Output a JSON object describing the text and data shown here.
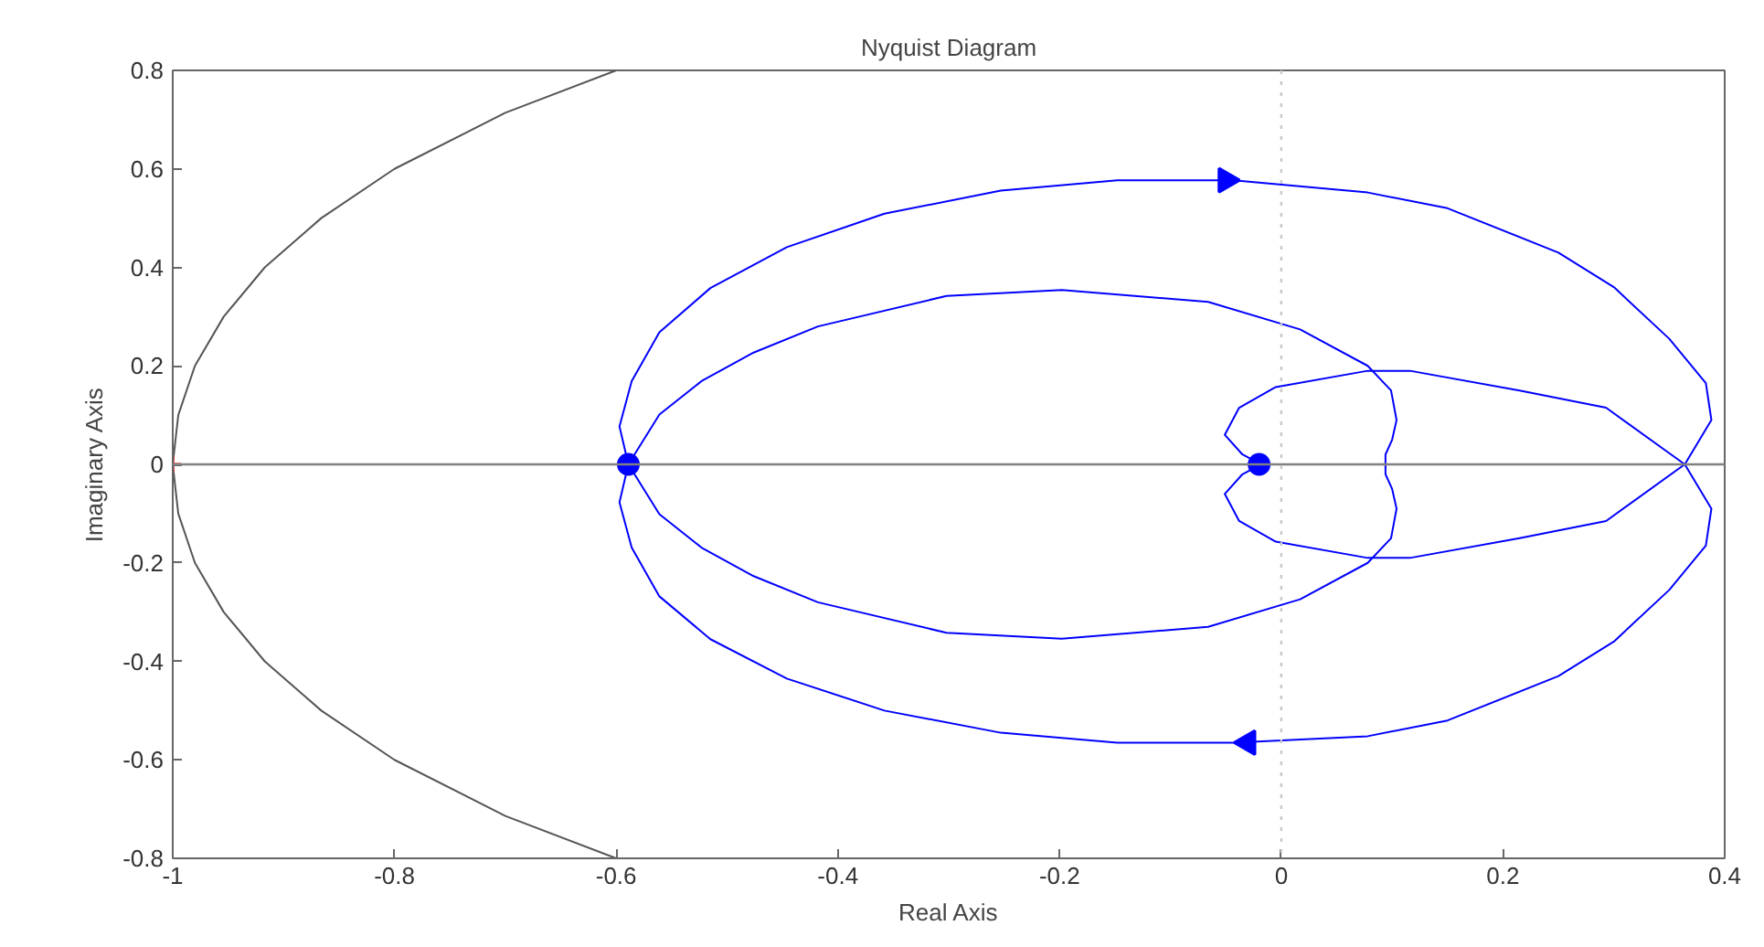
{
  "chart_data": {
    "type": "line",
    "title": "Nyquist Diagram",
    "xlabel": "Real Axis",
    "ylabel": "Imaginary Axis",
    "xlim": [
      -1,
      0.4
    ],
    "ylim": [
      -0.8,
      0.8
    ],
    "xticks": [
      -1,
      -0.8,
      -0.6,
      -0.4,
      -0.2,
      0,
      0.2,
      0.4
    ],
    "yticks": [
      -0.8,
      -0.6,
      -0.4,
      -0.2,
      0,
      0.2,
      0.4,
      0.6,
      0.8
    ],
    "grid": false,
    "line_style": "solid",
    "ref_lines": [
      {
        "axis": "y",
        "value": 0,
        "color": "#808080",
        "line_style": "solid"
      },
      {
        "axis": "x",
        "value": 0,
        "color": "#c8c8c8",
        "line_style": "dotted"
      }
    ],
    "series": [
      {
        "color": "#555555",
        "x": [
          -0.6,
          -0.7,
          -0.8,
          -0.866,
          -0.917,
          -0.954,
          -0.98,
          -0.995,
          -1,
          -0.995,
          -0.98,
          -0.954,
          -0.917,
          -0.866,
          -0.8,
          -0.7,
          -0.6
        ],
        "values": [
          0.8,
          0.714,
          0.6,
          0.5,
          0.4,
          0.3,
          0.2,
          0.1,
          0,
          -0.1,
          -0.2,
          -0.3,
          -0.4,
          -0.5,
          -0.6,
          -0.714,
          -0.8
        ]
      },
      {
        "color": "#0000ff",
        "x": [
          -0.028,
          -0.035,
          -0.051,
          -0.038,
          -0.005,
          0.078,
          0.116,
          0.215,
          0.293,
          0.364,
          0.388,
          0.383,
          0.35,
          0.3,
          0.25,
          0.15,
          0.078,
          -0.043,
          -0.148,
          -0.253,
          -0.358,
          -0.446,
          -0.515,
          -0.561,
          -0.586,
          -0.597,
          -0.589,
          -0.561,
          -0.523,
          -0.476,
          -0.418,
          -0.302,
          -0.198,
          -0.066,
          0.017,
          0.078,
          0.099,
          0.104,
          0.1,
          0.094,
          0.094,
          0.094,
          0.1,
          0.104,
          0.099,
          0.078,
          0.017,
          -0.066,
          -0.198,
          -0.302,
          -0.418,
          -0.476,
          -0.523,
          -0.561,
          -0.589,
          -0.597,
          -0.586,
          -0.561,
          -0.515,
          -0.446,
          -0.358,
          -0.253,
          -0.148,
          -0.043,
          0.078,
          0.15,
          0.25,
          0.3,
          0.35,
          0.383,
          0.388,
          0.364,
          0.293,
          0.215,
          0.116,
          0.078,
          -0.005,
          -0.038,
          -0.051,
          -0.035,
          -0.028
        ],
        "values": [
          0.012,
          0.02,
          0.06,
          0.115,
          0.157,
          0.19,
          0.19,
          0.15,
          0.115,
          0,
          0.09,
          0.165,
          0.255,
          0.36,
          0.43,
          0.52,
          0.552,
          0.577,
          0.577,
          0.556,
          0.509,
          0.441,
          0.358,
          0.268,
          0.169,
          0.077,
          0,
          0.101,
          0.169,
          0.227,
          0.28,
          0.342,
          0.354,
          0.33,
          0.274,
          0.2,
          0.15,
          0.09,
          0.05,
          0.02,
          0,
          -0.02,
          -0.05,
          -0.09,
          -0.15,
          -0.2,
          -0.274,
          -0.33,
          -0.354,
          -0.342,
          -0.28,
          -0.227,
          -0.169,
          -0.101,
          0,
          -0.077,
          -0.169,
          -0.268,
          -0.355,
          -0.435,
          -0.5,
          -0.545,
          -0.565,
          -0.565,
          -0.552,
          -0.52,
          -0.43,
          -0.36,
          -0.255,
          -0.165,
          -0.09,
          0,
          -0.115,
          -0.15,
          -0.19,
          -0.19,
          -0.157,
          -0.115,
          -0.06,
          -0.02,
          -0.012
        ]
      },
      {
        "type": "scatter",
        "marker": "circle",
        "color": "#0000ff",
        "x": [
          -0.589,
          -0.02
        ],
        "values": [
          0,
          0
        ]
      },
      {
        "type": "scatter",
        "marker": "triangle",
        "color": "#0000ff",
        "x": [
          -0.05,
          -0.03
        ],
        "values": [
          0.577,
          -0.565
        ]
      },
      {
        "type": "scatter",
        "marker": "cross",
        "color": "#ff0000",
        "x": [
          -1
        ],
        "values": [
          0
        ]
      }
    ]
  }
}
